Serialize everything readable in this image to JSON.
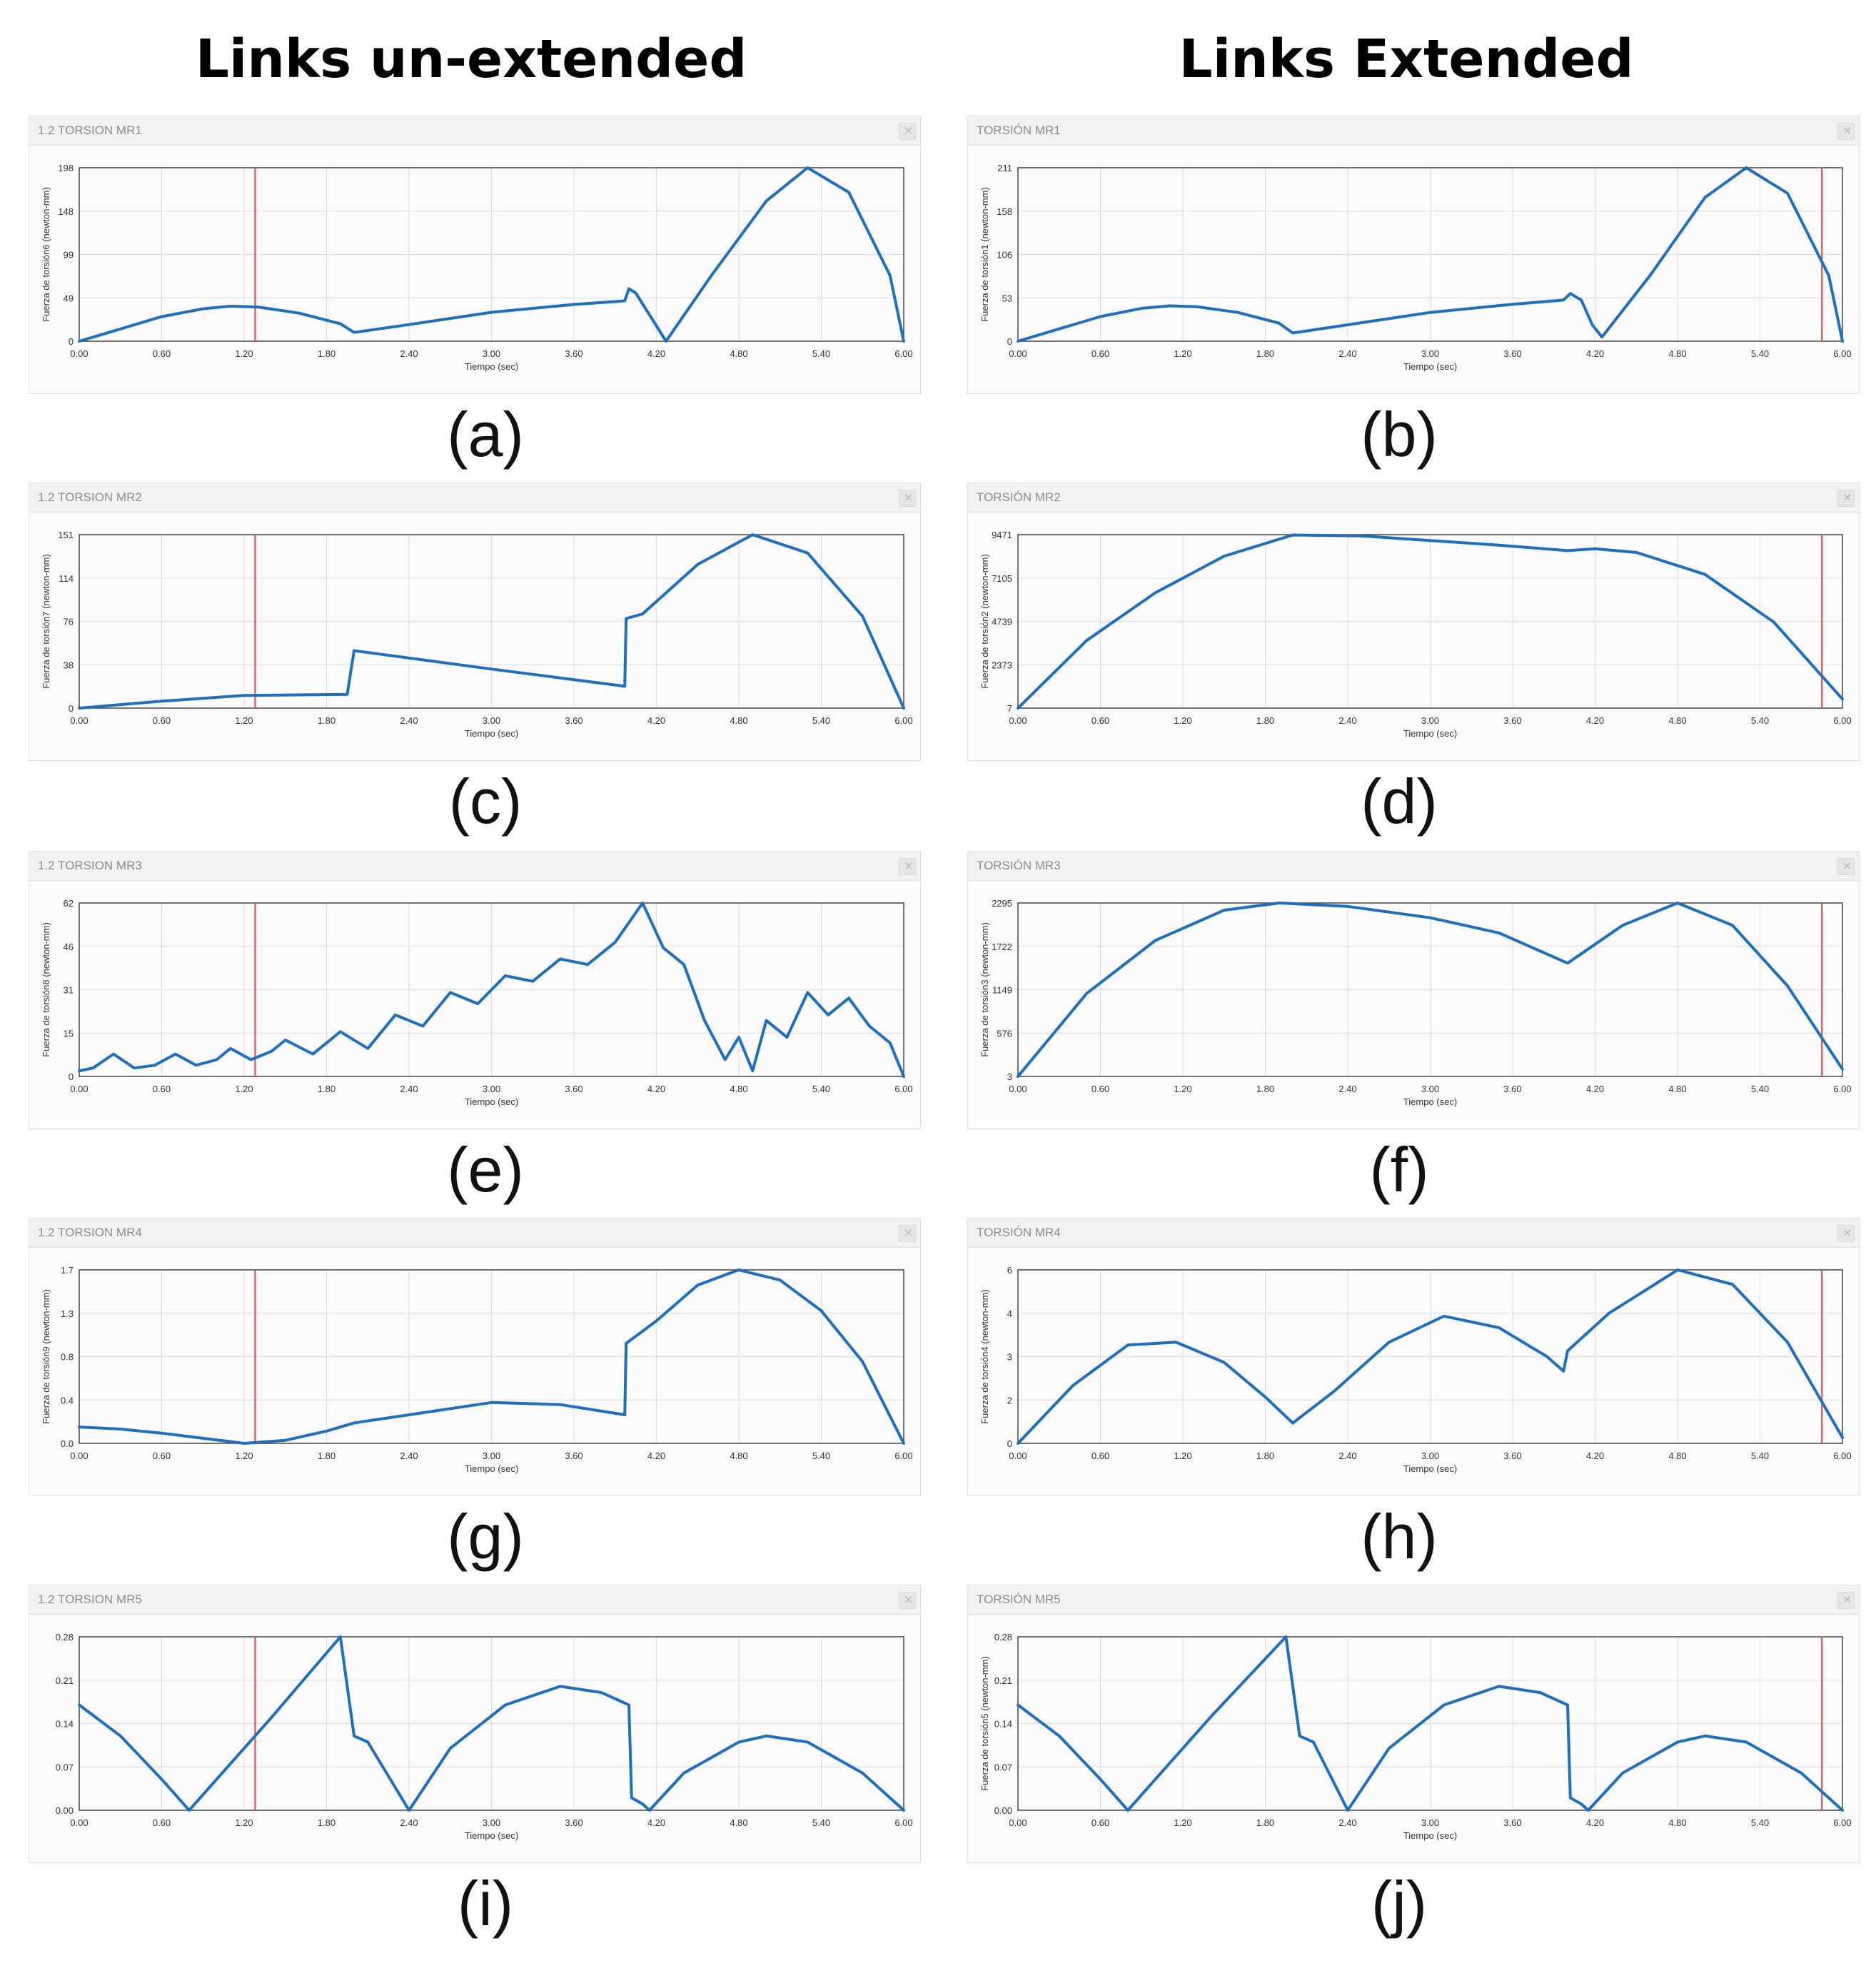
{
  "headers": {
    "left": "Links un-extended",
    "right": "Links Extended"
  },
  "colors": {
    "curve": "#1f6fbf",
    "marker": "#e8424a",
    "grid": "#dcdcdc"
  },
  "chart_data": [
    {
      "type": "line",
      "label": "(a)",
      "window_title": "1.2 TORSION MR1",
      "ylabel": "Fuerza de torsión6 (newton-mm)",
      "xlabel": "Tiempo (sec)",
      "xlim": [
        0,
        6
      ],
      "ylim": [
        0,
        198
      ],
      "xticks": [
        "0.00",
        "0.60",
        "1.20",
        "1.80",
        "2.40",
        "3.00",
        "3.60",
        "4.20",
        "4.80",
        "5.40",
        "6.00"
      ],
      "yticks": [
        "0",
        "49",
        "99",
        "148",
        "198"
      ],
      "marker_x": 1.28,
      "x": [
        0,
        0.3,
        0.6,
        0.9,
        1.1,
        1.3,
        1.6,
        1.9,
        2.0,
        2.4,
        3.0,
        3.6,
        3.97,
        4.0,
        4.05,
        4.15,
        4.27,
        4.6,
        5.0,
        5.3,
        5.6,
        5.9,
        6.0
      ],
      "y": [
        0,
        14,
        28,
        37,
        40,
        39,
        32,
        20,
        10,
        19,
        33,
        42,
        46,
        60,
        55,
        30,
        0,
        75,
        160,
        198,
        170,
        75,
        0
      ]
    },
    {
      "type": "line",
      "label": "(b)",
      "window_title": "TORSIÓN MR1",
      "ylabel": "Fuerza de torsión1 (newton-mm)",
      "xlabel": "Tiempo (sec)",
      "xlim": [
        0,
        6
      ],
      "ylim": [
        0,
        211
      ],
      "xticks": [
        "0.00",
        "0.60",
        "1.20",
        "1.80",
        "2.40",
        "3.00",
        "3.60",
        "4.20",
        "4.80",
        "5.40",
        "6.00"
      ],
      "yticks": [
        "0",
        "53",
        "106",
        "158",
        "211"
      ],
      "marker_x": 5.85,
      "x": [
        0,
        0.3,
        0.6,
        0.9,
        1.1,
        1.3,
        1.6,
        1.9,
        2.0,
        2.4,
        3.0,
        3.6,
        3.97,
        4.02,
        4.1,
        4.18,
        4.25,
        4.6,
        5.0,
        5.3,
        5.6,
        5.9,
        6.0
      ],
      "y": [
        0,
        15,
        30,
        40,
        43,
        42,
        35,
        22,
        10,
        20,
        35,
        45,
        50,
        58,
        50,
        20,
        5,
        80,
        175,
        211,
        180,
        80,
        0
      ]
    },
    {
      "type": "line",
      "label": "(c)",
      "window_title": "1.2 TORSION MR2",
      "ylabel": "Fuerza de torsión7 (newton-mm)",
      "xlabel": "Tiempo (sec)",
      "xlim": [
        0,
        6
      ],
      "ylim": [
        0,
        151
      ],
      "xticks": [
        "0.00",
        "0.60",
        "1.20",
        "1.80",
        "2.40",
        "3.00",
        "3.60",
        "4.20",
        "4.80",
        "5.40",
        "6.00"
      ],
      "yticks": [
        "0",
        "38",
        "76",
        "114",
        "151"
      ],
      "marker_x": 1.28,
      "x": [
        0,
        0.6,
        1.2,
        1.95,
        2.0,
        3.0,
        3.97,
        3.98,
        4.1,
        4.5,
        4.9,
        5.3,
        5.7,
        6.0
      ],
      "y": [
        0,
        6,
        11,
        12,
        50,
        34,
        19,
        78,
        82,
        125,
        151,
        135,
        80,
        0
      ]
    },
    {
      "type": "line",
      "label": "(d)",
      "window_title": "TORSIÓN MR2",
      "ylabel": "Fuerza de torsión2 (newton-mm)",
      "xlabel": "Tiempo (sec)",
      "xlim": [
        0,
        6
      ],
      "ylim": [
        7,
        9471
      ],
      "xticks": [
        "0.00",
        "0.60",
        "1.20",
        "1.80",
        "2.40",
        "3.00",
        "3.60",
        "4.20",
        "4.80",
        "5.40",
        "6.00"
      ],
      "yticks": [
        "7",
        "2373",
        "4739",
        "7105",
        "9471"
      ],
      "marker_x": 5.85,
      "x": [
        0,
        0.5,
        1.0,
        1.5,
        2.0,
        2.5,
        3.0,
        3.5,
        4.0,
        4.2,
        4.5,
        5.0,
        5.5,
        6.0
      ],
      "y": [
        7,
        3700,
        6300,
        8300,
        9450,
        9400,
        9150,
        8900,
        8600,
        8700,
        8500,
        7300,
        4700,
        500
      ]
    },
    {
      "type": "line",
      "label": "(e)",
      "window_title": "1.2 TORSION MR3",
      "ylabel": "Fuerza de torsión8 (newton-mm)",
      "xlabel": "Tiempo (sec)",
      "xlim": [
        0,
        6
      ],
      "ylim": [
        0,
        62
      ],
      "xticks": [
        "0.00",
        "0.60",
        "1.20",
        "1.80",
        "2.40",
        "3.00",
        "3.60",
        "4.20",
        "4.80",
        "5.40",
        "6.00"
      ],
      "yticks": [
        "0",
        "15",
        "31",
        "46",
        "62"
      ],
      "marker_x": 1.28,
      "x": [
        0,
        0.1,
        0.25,
        0.4,
        0.55,
        0.7,
        0.85,
        1.0,
        1.1,
        1.25,
        1.4,
        1.5,
        1.7,
        1.9,
        2.1,
        2.3,
        2.5,
        2.7,
        2.9,
        3.1,
        3.3,
        3.5,
        3.7,
        3.9,
        4.1,
        4.25,
        4.4,
        4.55,
        4.7,
        4.8,
        4.9,
        5.0,
        5.15,
        5.3,
        5.45,
        5.6,
        5.75,
        5.9,
        6.0
      ],
      "y": [
        2,
        3,
        8,
        3,
        4,
        8,
        4,
        6,
        10,
        6,
        9,
        13,
        8,
        16,
        10,
        22,
        18,
        30,
        26,
        36,
        34,
        42,
        40,
        48,
        62,
        46,
        40,
        20,
        6,
        14,
        2,
        20,
        14,
        30,
        22,
        28,
        18,
        12,
        0
      ]
    },
    {
      "type": "line",
      "label": "(f)",
      "window_title": "TORSIÓN MR3",
      "ylabel": "Fuerza de torsión3 (newton-mm)",
      "xlabel": "Tiempo (sec)",
      "xlim": [
        0,
        6
      ],
      "ylim": [
        3,
        2295
      ],
      "xticks": [
        "0.00",
        "0.60",
        "1.20",
        "1.80",
        "2.40",
        "3.00",
        "3.60",
        "4.20",
        "4.80",
        "5.40",
        "6.00"
      ],
      "yticks": [
        "3",
        "576",
        "1149",
        "1722",
        "2295"
      ],
      "marker_x": 5.85,
      "x": [
        0,
        0.5,
        1.0,
        1.5,
        1.9,
        2.4,
        3.0,
        3.5,
        4.0,
        4.4,
        4.8,
        5.2,
        5.6,
        6.0
      ],
      "y": [
        3,
        1100,
        1800,
        2200,
        2295,
        2250,
        2100,
        1900,
        1500,
        2000,
        2295,
        2000,
        1200,
        100
      ]
    },
    {
      "type": "line",
      "label": "(g)",
      "window_title": "1.2 TORSION MR4",
      "ylabel": "Fuerza de torsión9 (newton-mm)",
      "xlabel": "Tiempo (sec)",
      "xlim": [
        0,
        6
      ],
      "ylim": [
        0,
        1.7
      ],
      "xticks": [
        "0.00",
        "0.60",
        "1.20",
        "1.80",
        "2.40",
        "3.00",
        "3.60",
        "4.20",
        "4.80",
        "5.40",
        "6.00"
      ],
      "yticks": [
        "0.0",
        "0.4",
        "0.8",
        "1.3",
        "1.7"
      ],
      "marker_x": 1.28,
      "x": [
        0,
        0.3,
        0.6,
        0.9,
        1.2,
        1.5,
        1.8,
        2.0,
        2.5,
        3.0,
        3.5,
        3.97,
        3.98,
        4.2,
        4.5,
        4.8,
        5.1,
        5.4,
        5.7,
        6.0
      ],
      "y": [
        0.16,
        0.14,
        0.1,
        0.05,
        0.0,
        0.03,
        0.12,
        0.2,
        0.3,
        0.4,
        0.38,
        0.28,
        0.98,
        1.2,
        1.55,
        1.7,
        1.6,
        1.3,
        0.8,
        0.0
      ]
    },
    {
      "type": "line",
      "label": "(h)",
      "window_title": "TORSIÓN MR4",
      "ylabel": "Fuerza de torsión4 (newton-mm)",
      "xlabel": "Tiempo (sec)",
      "xlim": [
        0,
        6
      ],
      "ylim": [
        0,
        6
      ],
      "xticks": [
        "0.00",
        "0.60",
        "1.20",
        "1.80",
        "2.40",
        "3.00",
        "3.60",
        "4.20",
        "4.80",
        "5.40",
        "6.00"
      ],
      "yticks": [
        "0",
        "2",
        "3",
        "4",
        "6"
      ],
      "marker_x": 5.85,
      "x": [
        0,
        0.4,
        0.8,
        1.15,
        1.5,
        1.8,
        2.0,
        2.3,
        2.7,
        3.1,
        3.5,
        3.85,
        3.97,
        4.0,
        4.3,
        4.8,
        5.2,
        5.6,
        6.0
      ],
      "y": [
        0,
        2.0,
        3.4,
        3.5,
        2.8,
        1.6,
        0.7,
        1.8,
        3.5,
        4.4,
        4.0,
        3.0,
        2.5,
        3.2,
        4.5,
        6.0,
        5.5,
        3.5,
        0.2
      ]
    },
    {
      "type": "line",
      "label": "(i)",
      "window_title": "1.2 TORSION MR5",
      "ylabel": "",
      "xlabel": "Tiempo (sec)",
      "xlim": [
        0,
        6
      ],
      "ylim": [
        0,
        0.28
      ],
      "xticks": [
        "0.00",
        "0.60",
        "1.20",
        "1.80",
        "2.40",
        "3.00",
        "3.60",
        "4.20",
        "4.80",
        "5.40",
        "6.00"
      ],
      "yticks": [
        "0.00",
        "0.07",
        "0.14",
        "0.21",
        "0.28"
      ],
      "marker_x": 1.28,
      "x": [
        0,
        0.3,
        0.6,
        0.8,
        1.0,
        1.4,
        1.9,
        1.95,
        2.0,
        2.1,
        2.4,
        2.7,
        3.1,
        3.5,
        3.8,
        4.0,
        4.02,
        4.1,
        4.15,
        4.4,
        4.8,
        5.0,
        5.3,
        5.7,
        6.0
      ],
      "y": [
        0.17,
        0.12,
        0.05,
        0.0,
        0.05,
        0.15,
        0.28,
        0.2,
        0.12,
        0.11,
        0.0,
        0.1,
        0.17,
        0.2,
        0.19,
        0.17,
        0.02,
        0.01,
        0.0,
        0.06,
        0.11,
        0.12,
        0.11,
        0.06,
        0.0
      ]
    },
    {
      "type": "line",
      "label": "(j)",
      "window_title": "TORSIÓN MR5",
      "ylabel": "Fuerza de torsión5 (newton-mm)",
      "xlabel": "Tiempo (sec)",
      "xlim": [
        0,
        6
      ],
      "ylim": [
        0,
        0.28
      ],
      "xticks": [
        "0.00",
        "0.60",
        "1.20",
        "1.80",
        "2.40",
        "3.00",
        "3.60",
        "4.20",
        "4.80",
        "5.40",
        "6.00"
      ],
      "yticks": [
        "0.00",
        "0.07",
        "0.14",
        "0.21",
        "0.28"
      ],
      "marker_x": 5.85,
      "x": [
        0,
        0.3,
        0.6,
        0.8,
        1.0,
        1.4,
        1.95,
        2.0,
        2.05,
        2.15,
        2.4,
        2.7,
        3.1,
        3.5,
        3.8,
        4.0,
        4.02,
        4.1,
        4.15,
        4.4,
        4.8,
        5.0,
        5.3,
        5.7,
        6.0
      ],
      "y": [
        0.17,
        0.12,
        0.05,
        0.0,
        0.05,
        0.15,
        0.28,
        0.2,
        0.12,
        0.11,
        0.0,
        0.1,
        0.17,
        0.2,
        0.19,
        0.17,
        0.02,
        0.01,
        0.0,
        0.06,
        0.11,
        0.12,
        0.11,
        0.06,
        0.0
      ]
    }
  ]
}
